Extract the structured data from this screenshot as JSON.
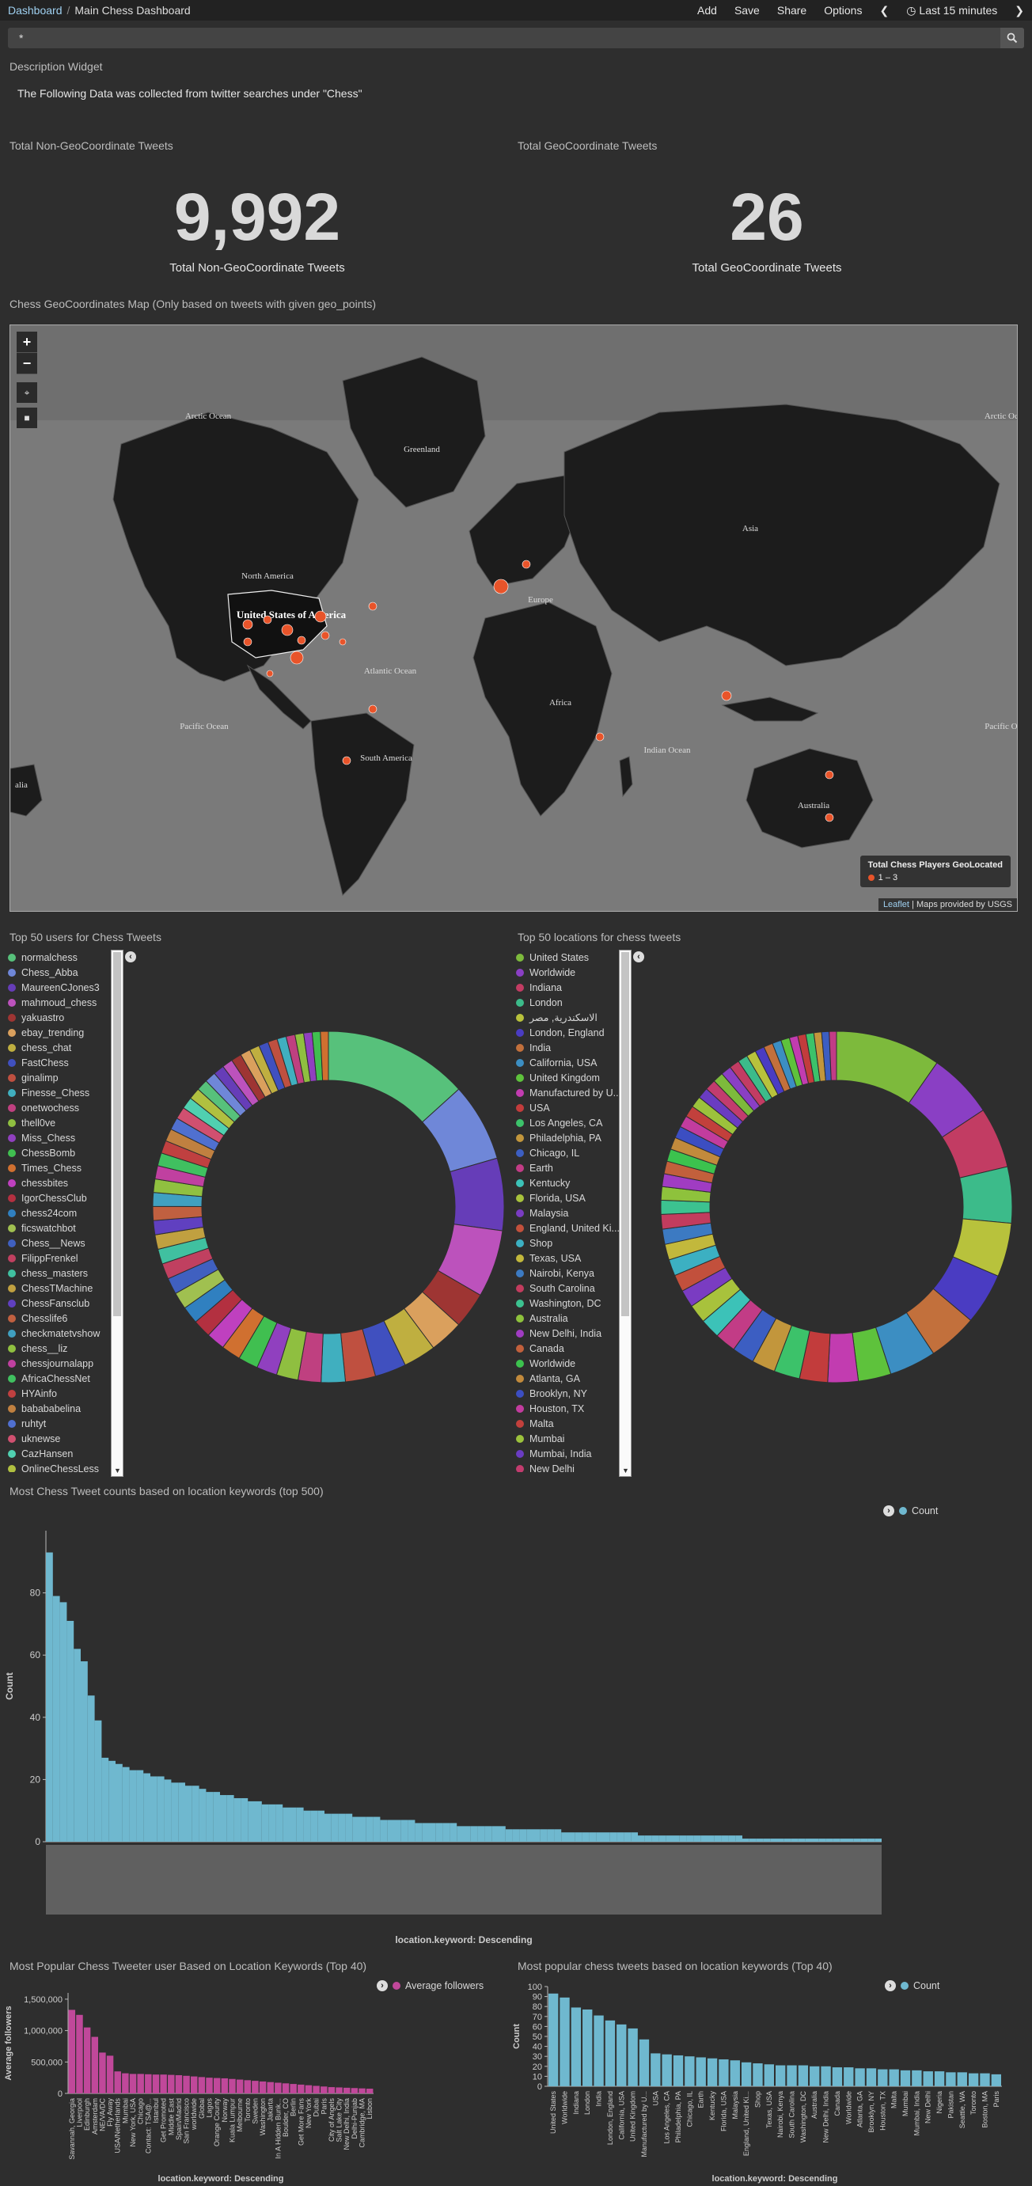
{
  "breadcrumb": {
    "root": "Dashboard",
    "current": "Main Chess Dashboard"
  },
  "nav": {
    "add": "Add",
    "save": "Save",
    "share": "Share",
    "options": "Options",
    "time": "Last 15 minutes"
  },
  "search": {
    "query": "*"
  },
  "description_widget": {
    "title": "Description Widget",
    "text": "The Following Data was collected from twitter searches under \"Chess\""
  },
  "metric_non_geo": {
    "title": "Total Non-GeoCoordinate Tweets",
    "value": "9,992",
    "label": "Total Non-GeoCoordinate Tweets"
  },
  "metric_geo": {
    "title": "Total GeoCoordinate Tweets",
    "value": "26",
    "label": "Total GeoCoordinate Tweets"
  },
  "map": {
    "title": "Chess GeoCoordinates Map (Only based on tweets with given geo_points)",
    "zoom_in": "+",
    "zoom_out": "−",
    "legend_title": "Total Chess Players GeoLocated",
    "legend_range": "1 – 3",
    "attribution_leaflet": "Leaflet",
    "attribution_tiles": " | Maps provided by USGS",
    "labels": [
      "Arctic Ocean",
      "Greenland",
      "North America",
      "United States of America",
      "Europe",
      "Asia",
      "Atlantic Ocean",
      "Africa",
      "Indian Ocean",
      "Pacific Ocean",
      "South America",
      "Australia",
      "Arctic Ocean",
      "Pacific Ocean",
      "alia"
    ],
    "marker_color": "#e8542a"
  },
  "users_panel": {
    "title": "Top 50 users for Chess Tweets",
    "items": [
      {
        "label": "normalchess",
        "color": "#57c17b"
      },
      {
        "label": "Chess_Abba",
        "color": "#6f87d8"
      },
      {
        "label": "MaureenCJones3",
        "color": "#663db8"
      },
      {
        "label": "mahmoud_chess",
        "color": "#bc52bc"
      },
      {
        "label": "yakuastro",
        "color": "#9e3533"
      },
      {
        "label": "ebay_trending",
        "color": "#daa05d"
      },
      {
        "label": "chess_chat",
        "color": "#bfaf40"
      },
      {
        "label": "FastChess",
        "color": "#4050bf"
      },
      {
        "label": "ginalimp",
        "color": "#bf5040"
      },
      {
        "label": "Finesse_Chess",
        "color": "#40afbf"
      },
      {
        "label": "onetwochess",
        "color": "#bf4080"
      },
      {
        "label": "thell0ve",
        "color": "#8fbf40"
      },
      {
        "label": "Miss_Chess",
        "color": "#9040bf"
      },
      {
        "label": "ChessBomb",
        "color": "#40bf50"
      },
      {
        "label": "Times_Chess",
        "color": "#d07030"
      },
      {
        "label": "chessbites",
        "color": "#bf40bf"
      },
      {
        "label": "IgorChessClub",
        "color": "#b33040"
      },
      {
        "label": "chess24com",
        "color": "#3080c0"
      },
      {
        "label": "ficswatchbot",
        "color": "#a0c050"
      },
      {
        "label": "Chess__News",
        "color": "#4060c0"
      },
      {
        "label": "FilippFrenkel",
        "color": "#c04060"
      },
      {
        "label": "chess_masters",
        "color": "#40c0a0"
      },
      {
        "label": "ChessTMachine",
        "color": "#c0a040"
      },
      {
        "label": "ChessFansclub",
        "color": "#6040c0"
      },
      {
        "label": "Chesslife6",
        "color": "#c06040"
      },
      {
        "label": "checkmatetvshow",
        "color": "#40a0c0"
      },
      {
        "label": "chess__liz",
        "color": "#90c040"
      },
      {
        "label": "chessjournalapp",
        "color": "#c040a0"
      },
      {
        "label": "AfricaChessNet",
        "color": "#40c060"
      },
      {
        "label": "HYAinfo",
        "color": "#c04040"
      },
      {
        "label": "babababelina",
        "color": "#c08040"
      },
      {
        "label": "ruhtyt",
        "color": "#5070d0"
      },
      {
        "label": "uknewse",
        "color": "#d05070"
      },
      {
        "label": "CazHansen",
        "color": "#50d0b0"
      },
      {
        "label": "OnlineChessLess",
        "color": "#b0c040"
      }
    ]
  },
  "locations_panel": {
    "title": "Top 50 locations for chess tweets",
    "items": [
      {
        "label": "United States",
        "color": "#7dba3c"
      },
      {
        "label": "Worldwide",
        "color": "#8a3fc4"
      },
      {
        "label": "Indiana",
        "color": "#c23c63"
      },
      {
        "label": "London",
        "color": "#3cbb8a"
      },
      {
        "label": "الاسكندرية, مصر",
        "color": "#b8c23c"
      },
      {
        "label": "London, England",
        "color": "#4a3cc2"
      },
      {
        "label": "India",
        "color": "#c2703c"
      },
      {
        "label": "California, USA",
        "color": "#3c8ec2"
      },
      {
        "label": "United Kingdom",
        "color": "#5ec23c"
      },
      {
        "label": "Manufactured by U...",
        "color": "#c23cb0"
      },
      {
        "label": "USA",
        "color": "#c23c3c"
      },
      {
        "label": "Los Angeles, CA",
        "color": "#3cc26a"
      },
      {
        "label": "Philadelphia, PA",
        "color": "#c2963c"
      },
      {
        "label": "Chicago, IL",
        "color": "#3c5ec2"
      },
      {
        "label": "Earth",
        "color": "#c23c86"
      },
      {
        "label": "Kentucky",
        "color": "#3cc2b8"
      },
      {
        "label": "Florida, USA",
        "color": "#a8c23c"
      },
      {
        "label": "Malaysia",
        "color": "#7a3cc2"
      },
      {
        "label": "England, United Ki...",
        "color": "#c2503c"
      },
      {
        "label": "Shop",
        "color": "#3cb0c2"
      },
      {
        "label": "Texas, USA",
        "color": "#c2b83c"
      },
      {
        "label": "Nairobi, Kenya",
        "color": "#3c7ac2"
      },
      {
        "label": "South Carolina",
        "color": "#c23c5e"
      },
      {
        "label": "Washington, DC",
        "color": "#3cc290"
      },
      {
        "label": "Australia",
        "color": "#8ec23c"
      },
      {
        "label": "New Delhi, India",
        "color": "#a03cc2"
      },
      {
        "label": "Canada",
        "color": "#c2603c"
      },
      {
        "label": "Worldwide",
        "color": "#3cc24e"
      },
      {
        "label": "Atlanta, GA",
        "color": "#c28a3c"
      },
      {
        "label": "Brooklyn, NY",
        "color": "#3c4ec2"
      },
      {
        "label": "Houston, TX",
        "color": "#c23c9e"
      },
      {
        "label": "Malta",
        "color": "#c2403c"
      },
      {
        "label": "Mumbai",
        "color": "#9cc23c"
      },
      {
        "label": "Mumbai, India",
        "color": "#6a3cc2"
      },
      {
        "label": "New Delhi",
        "color": "#c23c6e"
      }
    ]
  },
  "users_donut": [
    1200,
    650,
    600,
    560,
    300,
    280,
    270,
    260,
    250,
    200,
    190,
    180,
    170,
    165,
    160,
    155,
    150,
    145,
    140,
    135,
    130,
    125,
    120,
    118,
    116,
    114,
    112,
    110,
    108,
    106,
    104,
    102,
    100,
    98,
    96,
    94,
    92,
    90,
    88,
    86,
    84,
    82,
    80,
    78,
    76,
    74,
    72,
    70,
    68,
    66
  ],
  "locations_donut": [
    900,
    560,
    520,
    480,
    460,
    440,
    420,
    400,
    280,
    260,
    240,
    220,
    200,
    190,
    180,
    170,
    160,
    150,
    145,
    140,
    135,
    130,
    125,
    120,
    115,
    110,
    108,
    106,
    104,
    102,
    100,
    98,
    96,
    94,
    92,
    90,
    88,
    86,
    84,
    82,
    80,
    78,
    76,
    74,
    72,
    70,
    68,
    66,
    64,
    62
  ],
  "charts": [
    {
      "title": "Most Chess Tweet counts based on location keywords (top 500)",
      "legend": "Count",
      "legend_color": "#6fb8cf",
      "chart_data": {
        "type": "bar",
        "ylabel": "Count",
        "xlabel": "location.keyword: Descending",
        "ylim": [
          0,
          100
        ],
        "yticks": [
          0,
          20,
          40,
          60,
          80
        ],
        "values": [
          93,
          79,
          77,
          71,
          62,
          58,
          47,
          39,
          27,
          26,
          25,
          24,
          23,
          23,
          22,
          21,
          21,
          20,
          19,
          19,
          18,
          18,
          17,
          16,
          16,
          15,
          15,
          14,
          14,
          13,
          13,
          12,
          12,
          12,
          11,
          11,
          11,
          10,
          10,
          10,
          9,
          9,
          9,
          9,
          8,
          8,
          8,
          8,
          7,
          7,
          7,
          7,
          7,
          6,
          6,
          6,
          6,
          6,
          6,
          5,
          5,
          5,
          5,
          5,
          5,
          5,
          4,
          4,
          4,
          4,
          4,
          4,
          4,
          4,
          3,
          3,
          3,
          3,
          3,
          3,
          3,
          3,
          3,
          3,
          3,
          2,
          2,
          2,
          2,
          2,
          2,
          2,
          2,
          2,
          2,
          2,
          2,
          2,
          2,
          2,
          1,
          1,
          1,
          1,
          1,
          1,
          1,
          1,
          1,
          1,
          1,
          1,
          1,
          1,
          1,
          1,
          1,
          1,
          1,
          1
        ]
      }
    },
    {
      "title": "Most Popular Chess Tweeter user Based on Location Keywords (Top 40)",
      "legend": "Average followers",
      "legend_color": "#c0489a",
      "chart_data": {
        "type": "bar",
        "ylabel": "Average followers",
        "xlabel": "location.keyword: Descending",
        "ylim": [
          0,
          1600000
        ],
        "yticks": [
          0,
          500000,
          1000000,
          1500000
        ],
        "ytick_labels": [
          "0",
          "500,000",
          "1,000,000",
          "1,500,000"
        ],
        "categories": [
          "Savannah, Georgia",
          "Liverpool",
          "Edinburgh",
          "Amsterdam",
          "NE/VA/DC",
          "Fly Away",
          "USA/Netherlands",
          "Mumbai",
          "New York, USA",
          "Chicago",
          "Contact: TSA@...",
          "Istanbul",
          "Get Promoted",
          "Middle East",
          "Spain/Madrid",
          "San Francisco",
          "worldwide",
          "Global",
          "Lagos",
          "Orange County",
          "Norway",
          "Kuala Lumpur",
          "Melbourne",
          "Toronto",
          "Sweden",
          "Washington",
          "Jakarta",
          "In A Hidden Bunk...",
          "Boulder, CO",
          "Berlin",
          "Get More Fans",
          "New York",
          "Dubai",
          "Paris",
          "City of Angels",
          "Salt Lake City",
          "New Delhi, India",
          "Delhi-Punjab",
          "Cambridge, MA",
          "Lisbon"
        ],
        "values": [
          1330000,
          1250000,
          1050000,
          900000,
          650000,
          600000,
          350000,
          320000,
          310000,
          310000,
          305000,
          300000,
          300000,
          295000,
          290000,
          280000,
          270000,
          260000,
          250000,
          245000,
          240000,
          230000,
          220000,
          210000,
          200000,
          190000,
          180000,
          170000,
          160000,
          150000,
          140000,
          130000,
          120000,
          110000,
          100000,
          95000,
          90000,
          85000,
          80000,
          75000
        ]
      }
    },
    {
      "title": "Most popular chess tweets based on location keywords (Top 40)",
      "legend": "Count",
      "legend_color": "#6fb8cf",
      "chart_data": {
        "type": "bar",
        "ylabel": "Count",
        "xlabel": "location.keyword: Descending",
        "ylim": [
          0,
          100
        ],
        "yticks": [
          0,
          10,
          20,
          30,
          40,
          50,
          60,
          70,
          80,
          90,
          100
        ],
        "categories": [
          "United States",
          "Worldwide",
          "Indiana",
          "London",
          "India",
          "London, England",
          "California, USA",
          "United Kingdom",
          "Manufactured by U...",
          "USA",
          "Los Angeles, CA",
          "Philadelphia, PA",
          "Chicago, IL",
          "Earth",
          "Kentucky",
          "Florida, USA",
          "Malaysia",
          "England, United Ki...",
          "Shop",
          "Texas, USA",
          "Nairobi, Kenya",
          "South Carolina",
          "Washington, DC",
          "Australia",
          "New Delhi, India",
          "Canada",
          "Worldwide",
          "Atlanta, GA",
          "Brooklyn, NY",
          "Houston, TX",
          "Malta",
          "Mumbai",
          "Mumbai, India",
          "New Delhi",
          "Nigeria",
          "Pakistan",
          "Seattle, WA",
          "Toronto",
          "Boston, MA",
          "Paris"
        ],
        "values": [
          93,
          89,
          79,
          77,
          71,
          66,
          62,
          58,
          47,
          33,
          32,
          31,
          30,
          29,
          28,
          27,
          26,
          24,
          23,
          22,
          21,
          21,
          21,
          20,
          20,
          19,
          19,
          18,
          18,
          17,
          17,
          16,
          16,
          15,
          15,
          14,
          14,
          13,
          13,
          12
        ]
      }
    }
  ]
}
